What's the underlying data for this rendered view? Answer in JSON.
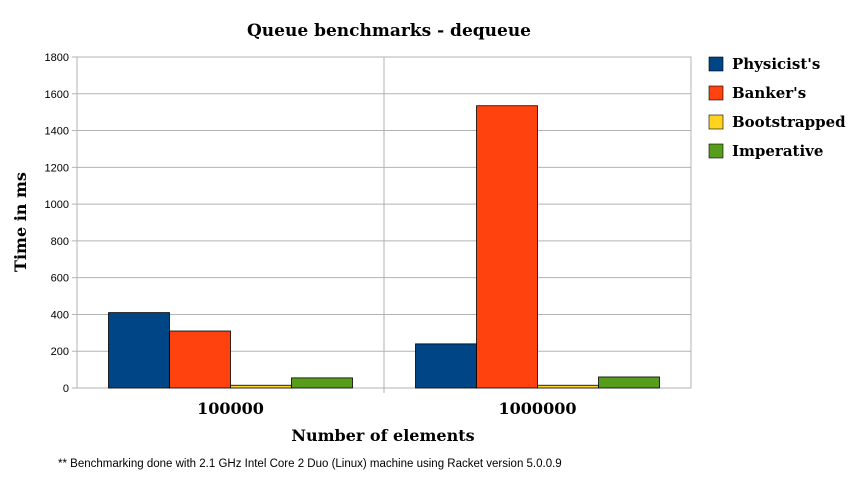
{
  "chart_data": {
    "type": "bar",
    "title": "Queue benchmarks - dequeue",
    "xlabel": "Number of elements",
    "ylabel": "Time in ms",
    "categories": [
      "100000",
      "1000000"
    ],
    "ylim": [
      0,
      1800
    ],
    "yticks": [
      0,
      200,
      400,
      600,
      800,
      1000,
      1200,
      1400,
      1600,
      1800
    ],
    "grid": true,
    "legend_position": "right",
    "series": [
      {
        "name": "Physicist's",
        "color": "#004586",
        "values": [
          410,
          240
        ]
      },
      {
        "name": "Banker's",
        "color": "#ff420e",
        "values": [
          310,
          1535
        ]
      },
      {
        "name": "Bootstrapped",
        "color": "#ffd320",
        "values": [
          15,
          15
        ]
      },
      {
        "name": "Imperative",
        "color": "#579d1c",
        "values": [
          55,
          60
        ]
      }
    ]
  },
  "footnote": "** Benchmarking done with 2.1 GHz Intel Core 2 Duo (Linux) machine using Racket version 5.0.0.9"
}
